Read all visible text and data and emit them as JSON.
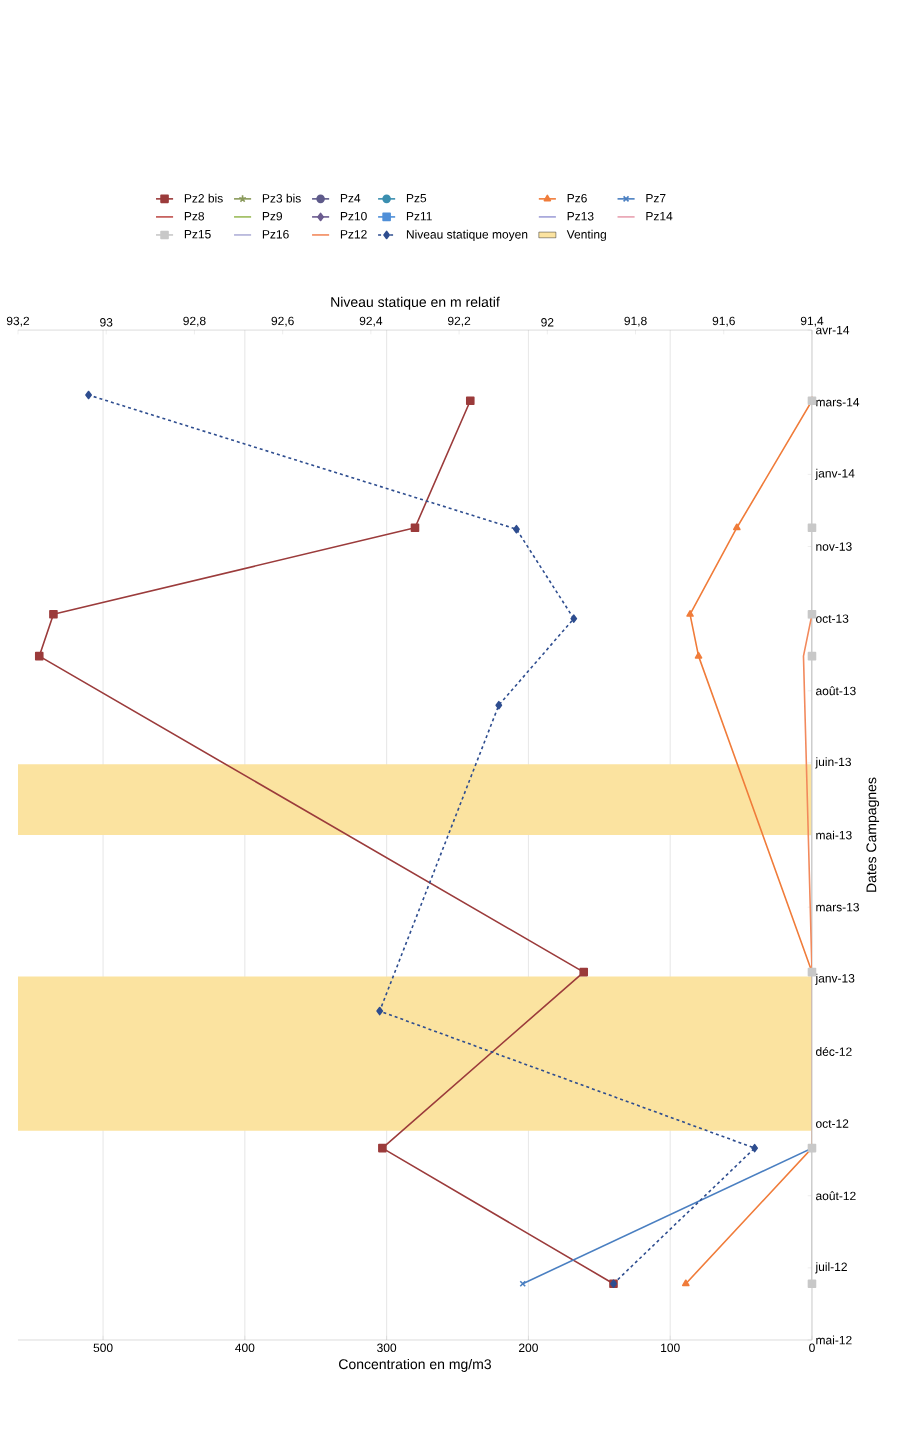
{
  "chart_data": {
    "type": "line",
    "orientation": "horizontal",
    "ylabel": "Dates Campagnes",
    "xlabel": "Concentration en mg/m3",
    "x2label": "Niveau statique en m relatif",
    "x": [
      "2012-06-28",
      "2012-09-30",
      "2013-01-30",
      "2013-09-06",
      "2013-10-05",
      "2013-12-04",
      "2014-03-02"
    ],
    "ylim": [
      "2012-05-20",
      "2014-04-20"
    ],
    "yticks": [
      {
        "value": "2012-05-20",
        "label": "mai-12"
      },
      {
        "value": "2012-07-09",
        "label": "juil-12"
      },
      {
        "value": "2012-08-28",
        "label": "août-12"
      },
      {
        "value": "2012-10-17",
        "label": "oct-12"
      },
      {
        "value": "2012-12-06",
        "label": "déc-12"
      },
      {
        "value": "2013-01-25",
        "label": "janv-13"
      },
      {
        "value": "2013-03-16",
        "label": "mars-13"
      },
      {
        "value": "2013-05-05",
        "label": "mai-13"
      },
      {
        "value": "2013-06-24",
        "label": "juin-13"
      },
      {
        "value": "2013-08-13",
        "label": "août-13"
      },
      {
        "value": "2013-10-02",
        "label": "oct-13"
      },
      {
        "value": "2013-11-21",
        "label": "nov-13"
      },
      {
        "value": "2014-01-10",
        "label": "janv-14"
      },
      {
        "value": "2014-03-01",
        "label": "mars-14"
      },
      {
        "value": "2014-04-20",
        "label": "avr-14"
      }
    ],
    "xlim": [
      560,
      0
    ],
    "xticks": [
      0,
      100,
      200,
      300,
      400,
      500
    ],
    "x2lim": [
      93.2,
      91.4
    ],
    "x2ticks": [
      {
        "value": 91.4,
        "label": "91,4"
      },
      {
        "value": 91.6,
        "label": "91,6"
      },
      {
        "value": 91.8,
        "label": "91,8"
      },
      {
        "value": 92,
        "label": "92"
      },
      {
        "value": 92.2,
        "label": "92,2"
      },
      {
        "value": 92.4,
        "label": "92,4"
      },
      {
        "value": 92.6,
        "label": "92,6"
      },
      {
        "value": 92.8,
        "label": "92,8"
      },
      {
        "value": 93,
        "label": "93"
      },
      {
        "value": 93.2,
        "label": "93,2"
      }
    ],
    "grid": "x",
    "legend": "top",
    "bands": [
      {
        "axis": "y",
        "from": "2012-10-12",
        "to": "2013-01-27",
        "label": "Venting",
        "color": "#fbe3a0"
      },
      {
        "axis": "y",
        "from": "2013-05-05",
        "to": "2013-06-23",
        "color": "#fbe3a0"
      }
    ],
    "series": [
      {
        "name": "Pz2 bis",
        "color": "#9b3b3b",
        "marker": "square",
        "values": [
          140,
          303,
          161,
          545,
          535,
          280,
          241
        ]
      },
      {
        "name": "Pz3 bis",
        "color": "#8a9a5b",
        "marker": "star",
        "values": [
          null,
          null,
          null,
          null,
          null,
          null,
          null
        ]
      },
      {
        "name": "Pz4",
        "color": "#5e5a8a",
        "marker": "circle",
        "values": [
          null,
          null,
          null,
          null,
          null,
          null,
          null
        ]
      },
      {
        "name": "Pz5",
        "color": "#3b8fb0",
        "marker": "circle",
        "values": [
          null,
          null,
          null,
          null,
          null,
          null,
          null
        ]
      },
      {
        "name": "Pz6",
        "color": "#f07c3a",
        "marker": "triangle",
        "values": [
          89,
          0,
          0,
          80,
          86,
          53,
          0
        ]
      },
      {
        "name": "Pz7",
        "color": "#4a7fc1",
        "marker": "cross",
        "values": [
          204,
          0,
          null,
          null,
          null,
          null,
          null
        ]
      },
      {
        "name": "Pz8",
        "color": "#c0504d",
        "marker": "none",
        "values": [
          null,
          null,
          null,
          null,
          null,
          null,
          null
        ]
      },
      {
        "name": "Pz9",
        "color": "#9bbb59",
        "marker": "none",
        "values": [
          null,
          null,
          null,
          null,
          null,
          null,
          null
        ]
      },
      {
        "name": "Pz10",
        "color": "#6b5b8f",
        "marker": "diamond",
        "values": [
          null,
          null,
          null,
          null,
          null,
          null,
          null
        ]
      },
      {
        "name": "Pz11",
        "color": "#4f8fd8",
        "marker": "square",
        "values": [
          null,
          null,
          null,
          null,
          null,
          null,
          null
        ]
      },
      {
        "name": "Pz13",
        "color": "#a0a0d8",
        "marker": "none",
        "values": [
          null,
          null,
          null,
          null,
          null,
          null,
          null
        ]
      },
      {
        "name": "Pz14",
        "color": "#e8a0b0",
        "marker": "none",
        "values": [
          null,
          null,
          null,
          null,
          null,
          null,
          null
        ]
      },
      {
        "name": "Pz15",
        "color": "#c8c8c8",
        "marker": "square",
        "values": [
          0,
          0,
          0,
          0,
          0,
          0,
          0
        ]
      },
      {
        "name": "Pz16",
        "color": "#b0b0d8",
        "marker": "none",
        "values": [
          null,
          null,
          null,
          null,
          null,
          null,
          null
        ]
      },
      {
        "name": "Pz12",
        "color": "#f2895c",
        "marker": "none",
        "values": [
          null,
          null,
          0,
          6,
          0,
          null,
          null
        ]
      },
      {
        "name": "Niveau statique moyen",
        "color": "#2e4d8f",
        "marker": "diamond",
        "line_style": "dashed",
        "axis": "x2",
        "x": [
          "2012-06-28",
          "2012-09-30",
          "2013-01-03",
          "2013-08-03",
          "2013-10-02",
          "2013-12-03",
          "2014-03-06"
        ],
        "values": [
          91.85,
          91.53,
          92.38,
          92.11,
          91.94,
          92.07,
          93.04
        ]
      }
    ]
  }
}
